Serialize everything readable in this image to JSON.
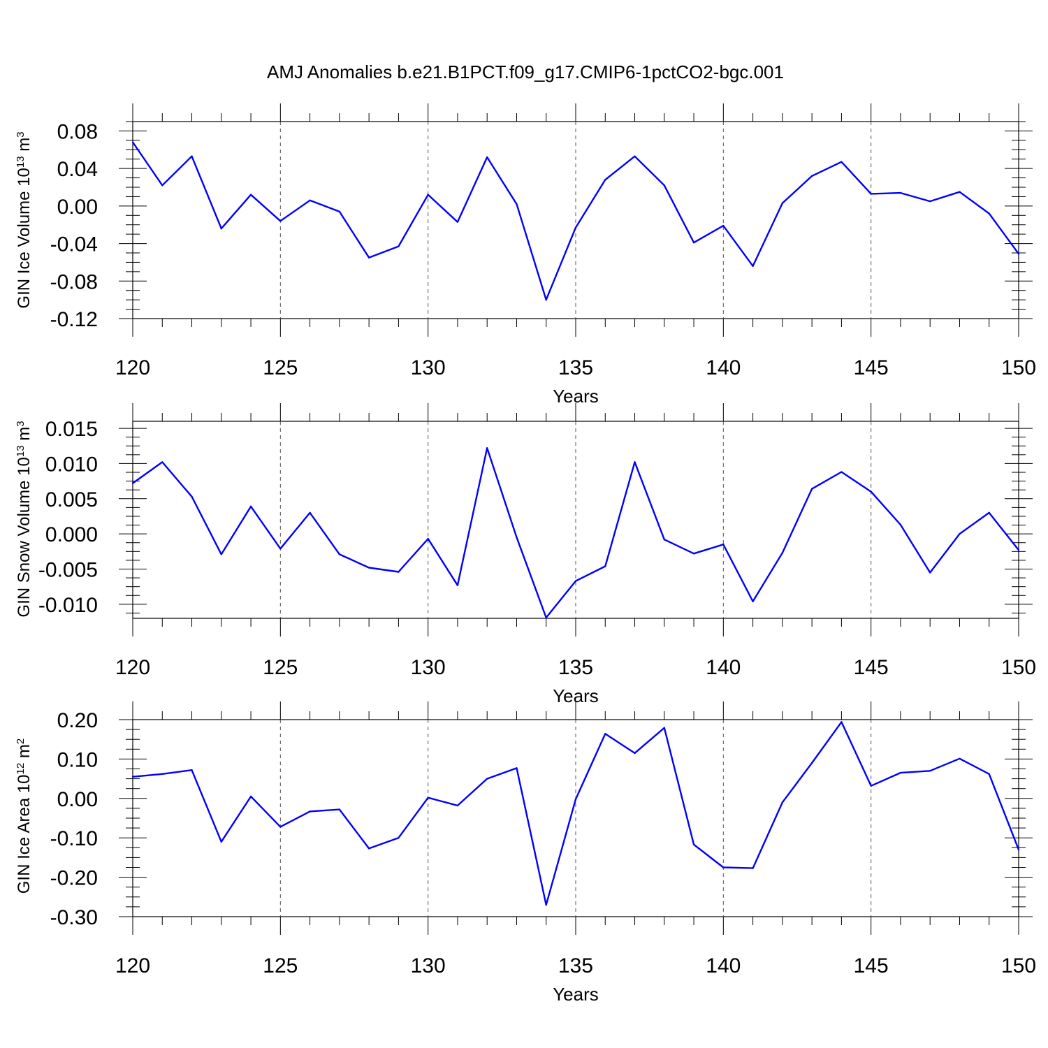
{
  "title": "AMJ Anomalies b.e21.B1PCT.f09_g17.CMIP6-1pctCO2-bgc.001",
  "line_color": "#0000ff",
  "chart_data": [
    {
      "type": "line",
      "xlabel": "Years",
      "ylabel": {
        "pre": "GIN Ice Volume 10",
        "sup1": "13",
        "mid": " m",
        "sup2": "3"
      },
      "xlim": [
        120,
        150
      ],
      "ylim": [
        -0.12,
        0.09
      ],
      "x_ticks": [
        "120",
        "125",
        "130",
        "135",
        "140",
        "145",
        "150"
      ],
      "y_ticks": [
        "0.08",
        "0.04",
        "0.00",
        "-0.04",
        "-0.08",
        "-0.12"
      ],
      "grid": "dashed vertical lines at major x ticks",
      "x": [
        120,
        121,
        122,
        123,
        124,
        125,
        126,
        127,
        128,
        129,
        130,
        131,
        132,
        133,
        134,
        135,
        136,
        137,
        138,
        139,
        140,
        141,
        142,
        143,
        144,
        145,
        146,
        147,
        148,
        149,
        150
      ],
      "values": [
        0.068,
        0.022,
        0.053,
        -0.024,
        0.012,
        -0.016,
        0.006,
        -0.006,
        -0.055,
        -0.043,
        0.012,
        -0.017,
        0.052,
        0.002,
        -0.1,
        -0.023,
        0.028,
        0.053,
        0.022,
        -0.039,
        -0.021,
        -0.064,
        0.003,
        0.032,
        0.047,
        0.013,
        0.014,
        0.005,
        0.015,
        -0.008,
        -0.051
      ]
    },
    {
      "type": "line",
      "xlabel": "Years",
      "ylabel": {
        "pre": "GIN Snow Volume 10",
        "sup1": "13",
        "mid": " m",
        "sup2": "3"
      },
      "xlim": [
        120,
        150
      ],
      "ylim": [
        -0.012,
        0.016
      ],
      "x_ticks": [
        "120",
        "125",
        "130",
        "135",
        "140",
        "145",
        "150"
      ],
      "y_ticks": [
        "0.015",
        "0.010",
        "0.005",
        "0.000",
        "-0.005",
        "-0.010"
      ],
      "grid": "dashed vertical lines at major x ticks",
      "x": [
        120,
        121,
        122,
        123,
        124,
        125,
        126,
        127,
        128,
        129,
        130,
        131,
        132,
        133,
        134,
        135,
        136,
        137,
        138,
        139,
        140,
        141,
        142,
        143,
        144,
        145,
        146,
        147,
        148,
        149,
        150
      ],
      "values": [
        0.0072,
        0.0102,
        0.0053,
        -0.0029,
        0.0039,
        -0.0021,
        0.003,
        -0.0029,
        -0.0048,
        -0.0054,
        -0.0007,
        -0.0073,
        0.0122,
        -0.0005,
        -0.0119,
        -0.0067,
        -0.0046,
        0.0102,
        -0.0008,
        -0.0028,
        -0.0015,
        -0.0096,
        -0.0027,
        0.0064,
        0.0088,
        0.006,
        0.0013,
        -0.0055,
        0.0,
        0.003,
        -0.0023
      ]
    },
    {
      "type": "line",
      "xlabel": "Years",
      "ylabel": {
        "pre": "GIN Ice Area 10",
        "sup1": "12",
        "mid": " m",
        "sup2": "2"
      },
      "xlim": [
        120,
        150
      ],
      "ylim": [
        -0.3,
        0.2
      ],
      "x_ticks": [
        "120",
        "125",
        "130",
        "135",
        "140",
        "145",
        "150"
      ],
      "y_ticks": [
        "0.20",
        "0.10",
        "0.00",
        "-0.10",
        "-0.20",
        "-0.30"
      ],
      "grid": "dashed vertical lines at major x ticks",
      "x": [
        120,
        121,
        122,
        123,
        124,
        125,
        126,
        127,
        128,
        129,
        130,
        131,
        132,
        133,
        134,
        135,
        136,
        137,
        138,
        139,
        140,
        141,
        142,
        143,
        144,
        145,
        146,
        147,
        148,
        149,
        150
      ],
      "values": [
        0.055,
        0.062,
        0.072,
        -0.11,
        0.005,
        -0.072,
        -0.033,
        -0.028,
        -0.127,
        -0.1,
        0.002,
        -0.018,
        0.05,
        0.077,
        -0.27,
        -0.002,
        0.164,
        0.115,
        0.179,
        -0.117,
        -0.175,
        -0.177,
        -0.01,
        0.09,
        0.194,
        0.032,
        0.065,
        0.07,
        0.101,
        0.062,
        -0.13
      ]
    }
  ]
}
